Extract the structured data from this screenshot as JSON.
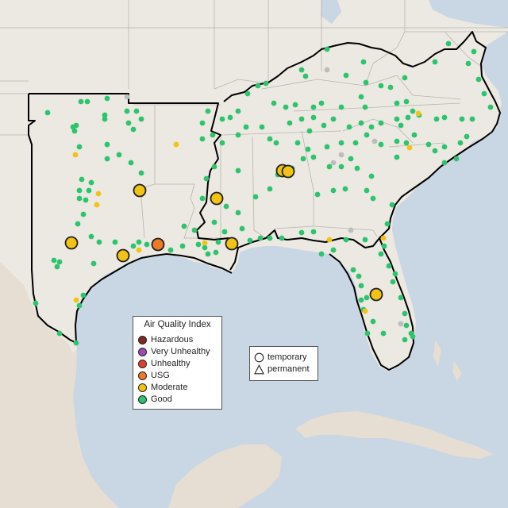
{
  "map": {
    "region": "Southeastern United States",
    "colors": {
      "land": "#ece8e2",
      "land_mexico": "#e6ddd3",
      "water": "#c9d6e3",
      "border_state": "#b8b4ae",
      "border_region": "#000000"
    }
  },
  "aqi_legend": {
    "title": "Air Quality Index",
    "items": [
      {
        "label": "Hazardous",
        "color": "#7e2a26"
      },
      {
        "label": "Very Unhealthy",
        "color": "#9a4fb0"
      },
      {
        "label": "Unhealthy",
        "color": "#e0412b"
      },
      {
        "label": "USG",
        "color": "#ee7a27"
      },
      {
        "label": "Moderate",
        "color": "#f3c314"
      },
      {
        "label": "Good",
        "color": "#2cc46d"
      }
    ]
  },
  "type_legend": {
    "items": [
      {
        "label": "temporary",
        "shape": "circle"
      },
      {
        "label": "permanent",
        "shape": "triangle"
      }
    ]
  },
  "no_data_color": "#bdbdbd"
}
